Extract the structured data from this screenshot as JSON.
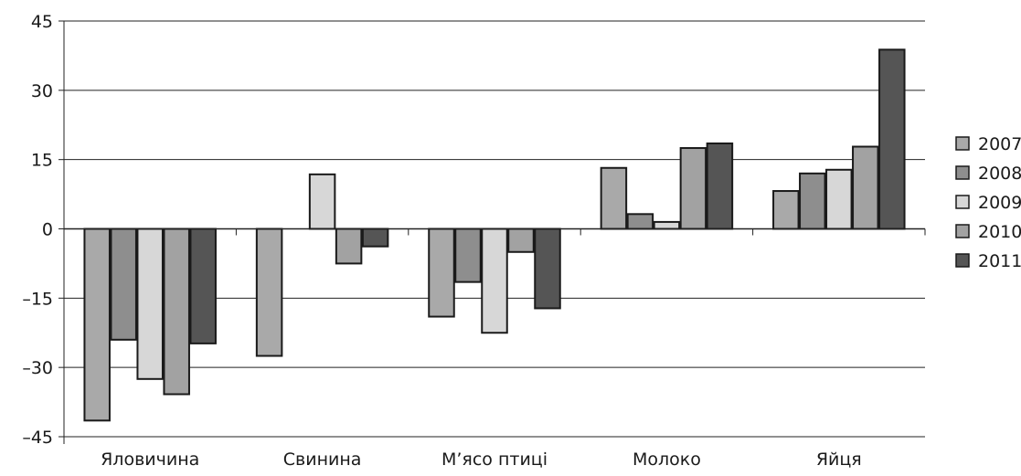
{
  "chart_data": {
    "type": "bar",
    "title": "",
    "xlabel": "",
    "ylabel": "",
    "ylim": [
      -45,
      45
    ],
    "yticks": [
      45,
      30,
      15,
      0,
      -15,
      -30,
      -45
    ],
    "ytick_labels": [
      "45",
      "30",
      "15",
      "0",
      "–15",
      "–30",
      "–45"
    ],
    "grid": true,
    "legend_position": "right",
    "categories": [
      "Яловичина",
      "Свинина",
      "М’ясо птиці",
      "Молоко",
      "Яйця"
    ],
    "series": [
      {
        "name": "2007",
        "color": "#a9a9a9",
        "values": [
          -41.5,
          -27.5,
          -19.0,
          13.2,
          8.2
        ]
      },
      {
        "name": "2008",
        "color": "#8e8e8e",
        "values": [
          -24.0,
          null,
          -11.5,
          3.2,
          12.0
        ]
      },
      {
        "name": "2009",
        "color": "#d7d7d7",
        "values": [
          -32.5,
          11.8,
          -22.5,
          1.5,
          12.8
        ]
      },
      {
        "name": "2010",
        "color": "#a2a2a2",
        "values": [
          -35.8,
          -7.5,
          -5.0,
          17.5,
          17.8
        ]
      },
      {
        "name": "2011",
        "color": "#555555",
        "values": [
          -24.8,
          -3.8,
          -17.2,
          18.5,
          38.8
        ]
      }
    ]
  }
}
